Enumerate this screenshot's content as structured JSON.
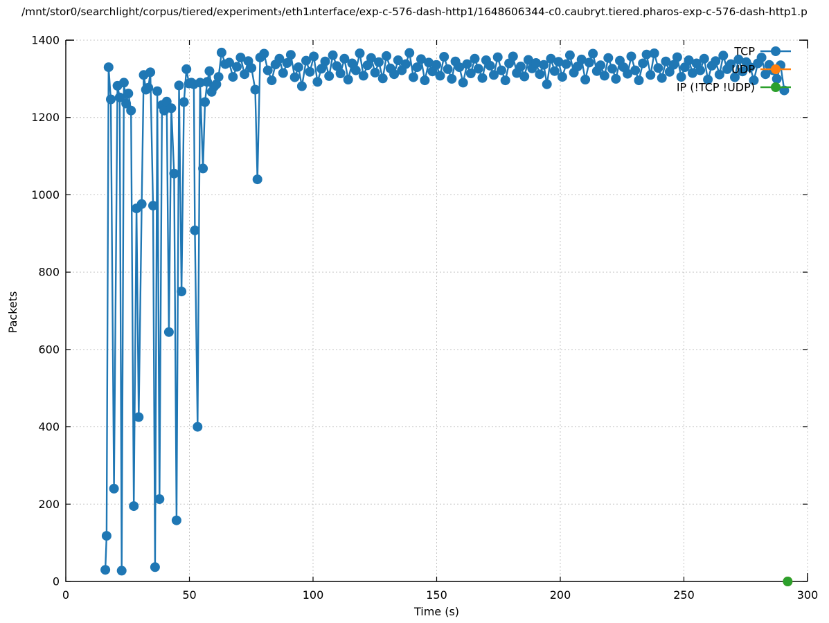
{
  "chart_data": {
    "type": "line",
    "title": "/mnt/stor0/searchlight/corpus/tiered/experiment₃/eth1ᵢnterface/exp-c-576-dash-http1/1648606344-c0.caubryt.tiered.pharos-exp-c-576-dash-http1.p",
    "xlabel": "Time (s)",
    "ylabel": "Packets",
    "xlim": [
      0,
      300
    ],
    "ylim": [
      0,
      1400
    ],
    "xticks": [
      0,
      50,
      100,
      150,
      200,
      250,
      300
    ],
    "yticks": [
      0,
      200,
      400,
      600,
      800,
      1000,
      1200,
      1400
    ],
    "grid": true,
    "legend": {
      "position": "top-right-inside",
      "entries": [
        "TCP",
        "UDP",
        "IP (!TCP !UDP)"
      ]
    },
    "series": [
      {
        "name": "TCP",
        "color": "#1f77b4",
        "marker": "circle",
        "points": [
          [
            16.0,
            30
          ],
          [
            16.5,
            118
          ],
          [
            17.3,
            1330
          ],
          [
            18.2,
            1247
          ],
          [
            19.5,
            240
          ],
          [
            20.9,
            1282
          ],
          [
            21.8,
            1252
          ],
          [
            22.6,
            28
          ],
          [
            23.5,
            1290
          ],
          [
            24.4,
            1236
          ],
          [
            25.3,
            1262
          ],
          [
            26.4,
            1218
          ],
          [
            27.5,
            195
          ],
          [
            28.6,
            965
          ],
          [
            29.5,
            425
          ],
          [
            30.7,
            976
          ],
          [
            31.5,
            1310
          ],
          [
            32.4,
            1272
          ],
          [
            33.4,
            1277
          ],
          [
            34.2,
            1317
          ],
          [
            35.3,
            972
          ],
          [
            36.1,
            37
          ],
          [
            37.0,
            1268
          ],
          [
            37.9,
            213
          ],
          [
            38.9,
            1232
          ],
          [
            39.8,
            1218
          ],
          [
            40.8,
            1241
          ],
          [
            41.7,
            645
          ],
          [
            42.7,
            1224
          ],
          [
            43.8,
            1055
          ],
          [
            44.8,
            158
          ],
          [
            45.8,
            1283
          ],
          [
            46.8,
            750
          ],
          [
            47.8,
            1240
          ],
          [
            48.8,
            1325
          ],
          [
            49.8,
            1288
          ],
          [
            50.8,
            1290
          ],
          [
            51.8,
            1286
          ],
          [
            52.2,
            908
          ],
          [
            53.3,
            400
          ],
          [
            54.3,
            1290
          ],
          [
            55.5,
            1068
          ],
          [
            56.3,
            1240
          ],
          [
            57.2,
            1292
          ],
          [
            58.1,
            1320
          ],
          [
            59.0,
            1266
          ],
          [
            60.0,
            1280
          ],
          [
            60.9,
            1286
          ],
          [
            61.8,
            1305
          ],
          [
            63.0,
            1368
          ],
          [
            64.5,
            1338
          ],
          [
            66.1,
            1342
          ],
          [
            67.6,
            1305
          ],
          [
            69.2,
            1331
          ],
          [
            70.7,
            1355
          ],
          [
            72.3,
            1312
          ],
          [
            73.8,
            1346
          ],
          [
            75.1,
            1328
          ],
          [
            76.6,
            1272
          ],
          [
            77.5,
            1040
          ],
          [
            78.6,
            1355
          ],
          [
            80.2,
            1365
          ],
          [
            81.7,
            1322
          ],
          [
            83.3,
            1296
          ],
          [
            84.8,
            1337
          ],
          [
            86.4,
            1352
          ],
          [
            87.9,
            1315
          ],
          [
            89.5,
            1341
          ],
          [
            91.0,
            1362
          ],
          [
            92.6,
            1304
          ],
          [
            94.1,
            1330
          ],
          [
            95.5,
            1281
          ],
          [
            97.2,
            1347
          ],
          [
            98.7,
            1318
          ],
          [
            100.3,
            1358
          ],
          [
            101.8,
            1292
          ],
          [
            103.4,
            1326
          ],
          [
            104.9,
            1345
          ],
          [
            106.5,
            1307
          ],
          [
            108.0,
            1361
          ],
          [
            109.6,
            1333
          ],
          [
            111.1,
            1314
          ],
          [
            112.7,
            1352
          ],
          [
            114.2,
            1298
          ],
          [
            115.8,
            1340
          ],
          [
            117.3,
            1322
          ],
          [
            118.9,
            1366
          ],
          [
            120.4,
            1308
          ],
          [
            122.0,
            1335
          ],
          [
            123.5,
            1354
          ],
          [
            125.1,
            1316
          ],
          [
            126.6,
            1343
          ],
          [
            128.2,
            1301
          ],
          [
            129.7,
            1359
          ],
          [
            131.3,
            1327
          ],
          [
            132.8,
            1312
          ],
          [
            134.4,
            1348
          ],
          [
            135.9,
            1322
          ],
          [
            137.5,
            1338
          ],
          [
            139.0,
            1367
          ],
          [
            140.6,
            1304
          ],
          [
            142.1,
            1330
          ],
          [
            143.7,
            1351
          ],
          [
            145.2,
            1296
          ],
          [
            146.8,
            1342
          ],
          [
            148.3,
            1319
          ],
          [
            149.9,
            1336
          ],
          [
            151.4,
            1308
          ],
          [
            153.0,
            1357
          ],
          [
            154.5,
            1325
          ],
          [
            156.1,
            1300
          ],
          [
            157.6,
            1345
          ],
          [
            159.2,
            1330
          ],
          [
            160.7,
            1290
          ],
          [
            162.3,
            1338
          ],
          [
            163.8,
            1314
          ],
          [
            165.4,
            1352
          ],
          [
            166.9,
            1326
          ],
          [
            168.5,
            1302
          ],
          [
            170.0,
            1348
          ],
          [
            171.6,
            1334
          ],
          [
            173.1,
            1310
          ],
          [
            174.7,
            1356
          ],
          [
            176.2,
            1322
          ],
          [
            177.8,
            1296
          ],
          [
            179.3,
            1340
          ],
          [
            180.9,
            1358
          ],
          [
            182.4,
            1315
          ],
          [
            184.0,
            1332
          ],
          [
            185.5,
            1306
          ],
          [
            187.1,
            1349
          ],
          [
            188.6,
            1327
          ],
          [
            190.2,
            1341
          ],
          [
            191.7,
            1312
          ],
          [
            193.3,
            1336
          ],
          [
            194.6,
            1286
          ],
          [
            196.2,
            1352
          ],
          [
            197.7,
            1320
          ],
          [
            199.3,
            1344
          ],
          [
            200.8,
            1305
          ],
          [
            202.4,
            1338
          ],
          [
            203.9,
            1361
          ],
          [
            205.5,
            1316
          ],
          [
            207.0,
            1332
          ],
          [
            208.6,
            1350
          ],
          [
            210.1,
            1298
          ],
          [
            211.7,
            1342
          ],
          [
            213.2,
            1365
          ],
          [
            214.8,
            1320
          ],
          [
            216.3,
            1335
          ],
          [
            217.9,
            1308
          ],
          [
            219.4,
            1354
          ],
          [
            221.0,
            1326
          ],
          [
            222.5,
            1300
          ],
          [
            224.1,
            1347
          ],
          [
            225.6,
            1330
          ],
          [
            227.2,
            1313
          ],
          [
            228.7,
            1358
          ],
          [
            230.3,
            1322
          ],
          [
            231.8,
            1296
          ],
          [
            233.4,
            1340
          ],
          [
            234.9,
            1363
          ],
          [
            236.5,
            1310
          ],
          [
            238.0,
            1366
          ],
          [
            239.6,
            1328
          ],
          [
            241.1,
            1302
          ],
          [
            242.7,
            1345
          ],
          [
            244.2,
            1318
          ],
          [
            245.8,
            1336
          ],
          [
            247.3,
            1356
          ],
          [
            248.9,
            1305
          ],
          [
            250.4,
            1330
          ],
          [
            252.0,
            1348
          ],
          [
            253.5,
            1315
          ],
          [
            255.1,
            1340
          ],
          [
            256.6,
            1322
          ],
          [
            258.2,
            1352
          ],
          [
            259.7,
            1298
          ],
          [
            261.3,
            1334
          ],
          [
            262.8,
            1346
          ],
          [
            264.4,
            1311
          ],
          [
            265.9,
            1360
          ],
          [
            267.5,
            1325
          ],
          [
            269.0,
            1338
          ],
          [
            270.6,
            1304
          ],
          [
            272.1,
            1350
          ],
          [
            273.7,
            1319
          ],
          [
            275.2,
            1343
          ],
          [
            276.8,
            1330
          ],
          [
            278.3,
            1296
          ],
          [
            279.9,
            1340
          ],
          [
            281.4,
            1355
          ],
          [
            283.0,
            1312
          ],
          [
            284.5,
            1336
          ],
          [
            286.1,
            1322
          ],
          [
            287.6,
            1300
          ],
          [
            289.1,
            1335
          ],
          [
            290.6,
            1270
          ]
        ]
      },
      {
        "name": "UDP",
        "color": "#ff7f0e",
        "marker": "circle",
        "points": [
          [
            292,
            0
          ]
        ]
      },
      {
        "name": "IP (!TCP !UDP)",
        "color": "#2ca02c",
        "marker": "circle",
        "points": [
          [
            292,
            0
          ]
        ]
      }
    ]
  }
}
